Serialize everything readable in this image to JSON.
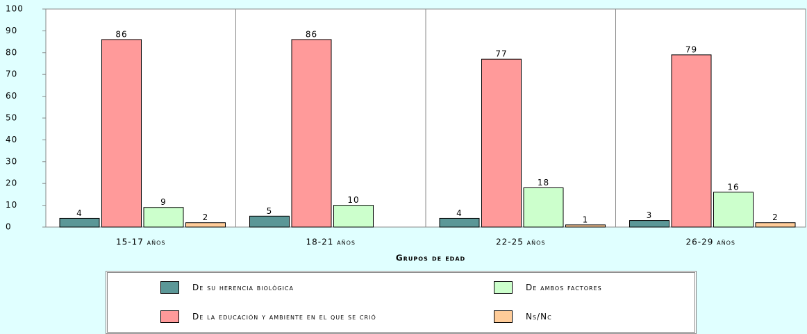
{
  "chart_data": {
    "type": "bar",
    "xlabel": "Grupos de edad",
    "categories": [
      "15-17 años",
      "18-21 años",
      "22-25 años",
      "26-29 años"
    ],
    "series": [
      {
        "name": "De su herencia biológica",
        "color": "#5b9797",
        "values": [
          4,
          5,
          4,
          3
        ]
      },
      {
        "name": "De la educación y ambiente en el que se crió",
        "color": "#ff9a9a",
        "values": [
          86,
          86,
          77,
          79
        ]
      },
      {
        "name": "De ambos factores",
        "color": "#ccffcc",
        "values": [
          9,
          10,
          18,
          16
        ]
      },
      {
        "name": "Ns/Nc",
        "color": "#ffcc99",
        "values": [
          2,
          null,
          1,
          2
        ]
      }
    ],
    "ylim": [
      0,
      100
    ],
    "yticks": [
      0,
      10,
      20,
      30,
      40,
      50,
      60,
      70,
      80,
      90,
      100
    ],
    "grid": false
  }
}
